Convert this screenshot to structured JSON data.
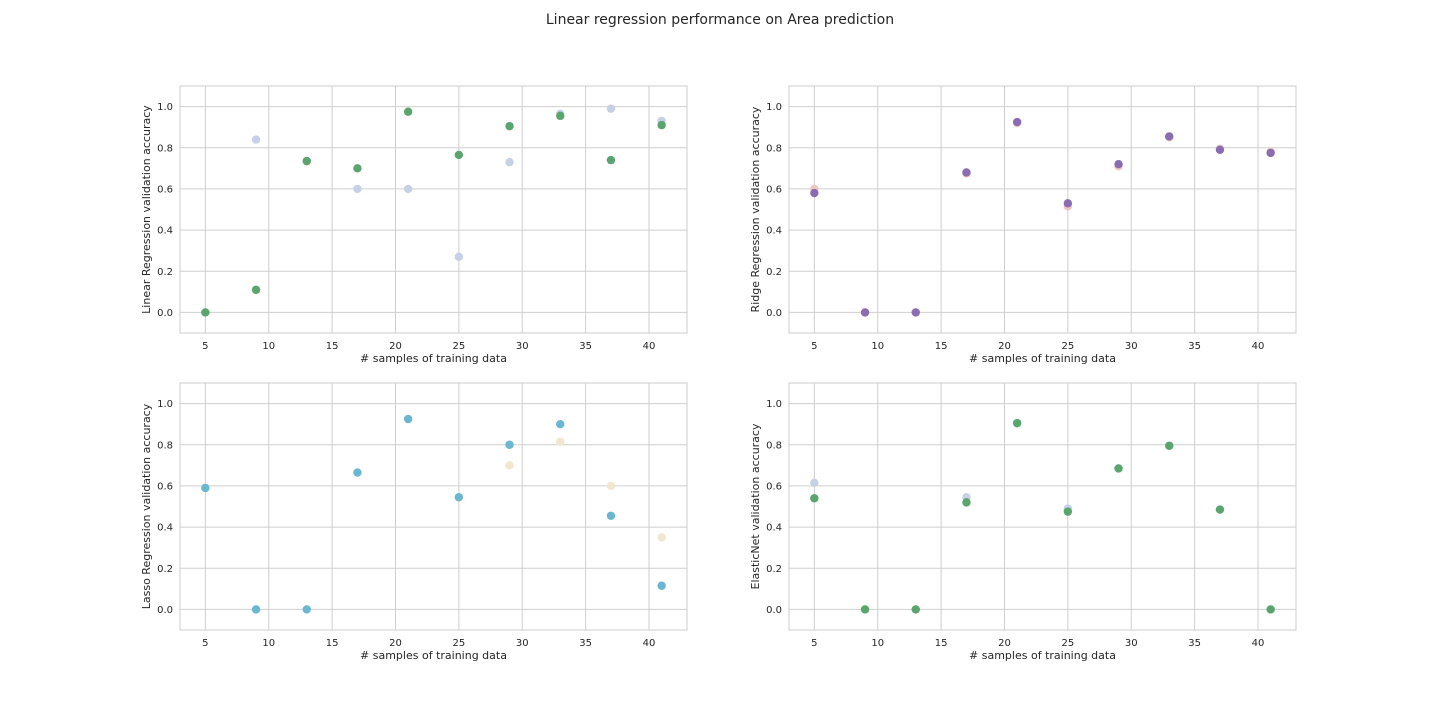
{
  "figure": {
    "title": "Linear regression performance on Area prediction"
  },
  "chart_data": [
    {
      "type": "scatter",
      "xlabel": "# samples of training data",
      "ylabel": "Linear Regression validation accuracy",
      "xlim": [
        3,
        43
      ],
      "ylim": [
        -0.1,
        1.1
      ],
      "xticks": [
        5,
        10,
        15,
        20,
        25,
        30,
        35,
        40
      ],
      "yticks": [
        0.0,
        0.2,
        0.4,
        0.6,
        0.8,
        1.0
      ],
      "grid": true,
      "series": [
        {
          "color": "#c6d0e6",
          "x": [
            5,
            9,
            13,
            17,
            21,
            25,
            29,
            33,
            37,
            41
          ],
          "y": [
            0.0,
            0.84,
            0.735,
            0.6,
            0.6,
            0.27,
            0.73,
            0.965,
            0.99,
            0.93
          ]
        },
        {
          "color": "#5aa56e",
          "x": [
            5,
            9,
            13,
            17,
            21,
            25,
            29,
            33,
            37,
            41
          ],
          "y": [
            0.0,
            0.11,
            0.735,
            0.7,
            0.975,
            0.765,
            0.905,
            0.955,
            0.74,
            0.91
          ]
        }
      ]
    },
    {
      "type": "scatter",
      "xlabel": "# samples of training data",
      "ylabel": "Ridge Regression validation accuracy",
      "xlim": [
        3,
        43
      ],
      "ylim": [
        -0.1,
        1.1
      ],
      "xticks": [
        5,
        10,
        15,
        20,
        25,
        30,
        35,
        40
      ],
      "yticks": [
        0.0,
        0.2,
        0.4,
        0.6,
        0.8,
        1.0
      ],
      "grid": true,
      "series": [
        {
          "color": "#f2c4c4",
          "x": [
            5,
            9,
            13,
            17,
            21,
            25,
            29,
            33,
            37,
            41
          ],
          "y": [
            0.6,
            0.0,
            0.0,
            0.675,
            0.92,
            0.515,
            0.71,
            0.85,
            0.795,
            0.78
          ]
        },
        {
          "color": "#8a6cb2",
          "x": [
            5,
            9,
            13,
            17,
            21,
            25,
            29,
            33,
            37,
            41
          ],
          "y": [
            0.58,
            0.0,
            0.0,
            0.68,
            0.925,
            0.53,
            0.72,
            0.855,
            0.79,
            0.775
          ]
        }
      ]
    },
    {
      "type": "scatter",
      "xlabel": "# samples of training data",
      "ylabel": "Lasso Regression validation accuracy",
      "xlim": [
        3,
        43
      ],
      "ylim": [
        -0.1,
        1.1
      ],
      "xticks": [
        5,
        10,
        15,
        20,
        25,
        30,
        35,
        40
      ],
      "yticks": [
        0.0,
        0.2,
        0.4,
        0.6,
        0.8,
        1.0
      ],
      "grid": true,
      "series": [
        {
          "color": "#f1e6cf",
          "x": [
            5,
            9,
            13,
            17,
            21,
            25,
            29,
            33,
            37,
            41
          ],
          "y": [
            0.59,
            0.0,
            0.0,
            0.665,
            0.925,
            0.545,
            0.7,
            0.815,
            0.6,
            0.35
          ]
        },
        {
          "color": "#6bb7d1",
          "x": [
            5,
            9,
            13,
            17,
            21,
            25,
            29,
            33,
            37,
            41
          ],
          "y": [
            0.59,
            0.0,
            0.0,
            0.665,
            0.925,
            0.545,
            0.8,
            0.9,
            0.455,
            0.115
          ]
        }
      ]
    },
    {
      "type": "scatter",
      "xlabel": "# samples of training data",
      "ylabel": "ElasticNet validation accuracy",
      "xlim": [
        3,
        43
      ],
      "ylim": [
        -0.1,
        1.1
      ],
      "xticks": [
        5,
        10,
        15,
        20,
        25,
        30,
        35,
        40
      ],
      "yticks": [
        0.0,
        0.2,
        0.4,
        0.6,
        0.8,
        1.0
      ],
      "grid": true,
      "series": [
        {
          "color": "#c6d0e6",
          "x": [
            5,
            9,
            13,
            17,
            21,
            25,
            29,
            33,
            37,
            41
          ],
          "y": [
            0.615,
            0.0,
            0.0,
            0.545,
            0.905,
            0.49,
            0.685,
            0.795,
            0.485,
            0.0
          ]
        },
        {
          "color": "#5aa56e",
          "x": [
            5,
            9,
            13,
            17,
            21,
            25,
            29,
            33,
            37,
            41
          ],
          "y": [
            0.54,
            0.0,
            0.0,
            0.52,
            0.905,
            0.475,
            0.685,
            0.795,
            0.485,
            0.0
          ]
        }
      ]
    }
  ]
}
